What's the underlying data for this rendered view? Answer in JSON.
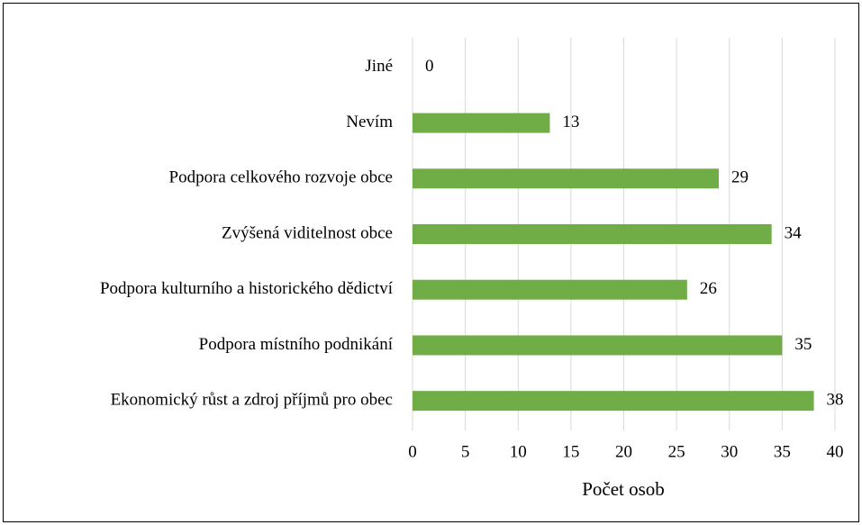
{
  "chart_data": {
    "type": "bar",
    "orientation": "horizontal",
    "categories": [
      "Jiné",
      "Nevím",
      "Podpora celkového rozvoje obce",
      "Zvýšená viditelnost obce",
      "Podpora kulturního a historického dědictví",
      "Podpora místního podnikání",
      "Ekonomický růst a zdroj příjmů pro obec"
    ],
    "values": [
      0,
      13,
      29,
      34,
      26,
      35,
      38
    ],
    "color": "#70ad47",
    "xlabel": "Počet osob",
    "xlim": [
      0,
      40
    ],
    "xticks": [
      0,
      5,
      10,
      15,
      20,
      25,
      30,
      35,
      40
    ],
    "grid": true
  }
}
